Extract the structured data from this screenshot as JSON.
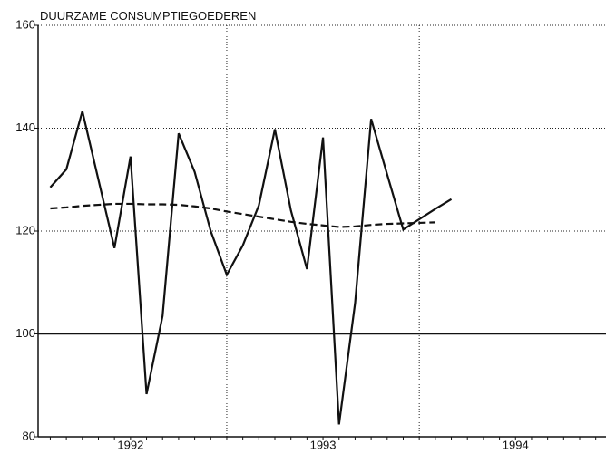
{
  "chart_data": {
    "type": "line",
    "title": "DUURZAME CONSUMPTIEGOEDEREN",
    "x": [
      1992.0833,
      1992.1667,
      1992.25,
      1992.3333,
      1992.4167,
      1992.5,
      1992.5833,
      1992.6667,
      1992.75,
      1992.8333,
      1992.9167,
      1993.0,
      1993.0833,
      1993.1667,
      1993.25,
      1993.3333,
      1993.4167,
      1993.5,
      1993.5833,
      1993.6667,
      1993.75,
      1993.8333,
      1993.9167,
      1994.0,
      1994.0833,
      1994.1667
    ],
    "series": [
      {
        "color": "#111111",
        "style": "solid",
        "values": [
          128.5,
          132,
          143.3,
          130,
          116.7,
          134.5,
          88.3,
          103.5,
          139,
          131.5,
          120,
          111.5,
          117.2,
          125,
          139.8,
          124,
          112.6,
          138.2,
          82.4,
          106,
          141.8,
          131,
          120.3,
          122.3,
          124.3,
          126.2
        ]
      },
      {
        "color": "#111111",
        "style": "dashed",
        "values": [
          124.4,
          124.6,
          124.9,
          125.1,
          125.3,
          125.3,
          125.2,
          125.2,
          125.1,
          124.8,
          124.4,
          123.8,
          123.3,
          122.8,
          122.3,
          121.8,
          121.4,
          121.1,
          120.8,
          120.9,
          121.2,
          121.4,
          121.5,
          121.6,
          121.7,
          null
        ]
      }
    ],
    "xlim": [
      1992.02,
      1994.97
    ],
    "xticks": [
      {
        "value": 1992.5,
        "label": "1992"
      },
      {
        "value": 1993.5,
        "label": "1993"
      },
      {
        "value": 1994.5,
        "label": "1994"
      }
    ],
    "xgrid": [
      1993,
      1994
    ],
    "ylim": [
      80,
      160
    ],
    "yticks": [
      80,
      100,
      120,
      140,
      160
    ],
    "ygrid": [
      120,
      140,
      160
    ],
    "reference_line": 100,
    "grid": true
  }
}
